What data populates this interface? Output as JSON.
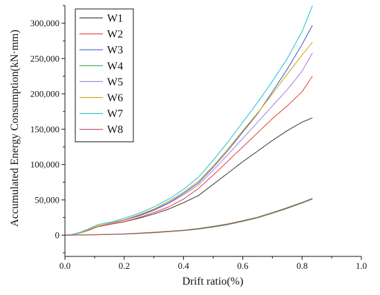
{
  "chart_data": {
    "type": "line",
    "xlabel": "Drift ratio(%)",
    "ylabel": "Accumulated Energy Consumption(kN·mm)",
    "xlim": [
      0,
      1.0
    ],
    "ylim": [
      -30000,
      325000
    ],
    "x_ticks": [
      0.0,
      0.2,
      0.4,
      0.6,
      0.8,
      1.0
    ],
    "x_tick_labels": [
      "0.0",
      "0.2",
      "0.4",
      "0.6",
      "0.8",
      "1.0"
    ],
    "y_ticks": [
      0,
      50000,
      100000,
      150000,
      200000,
      250000,
      300000
    ],
    "y_tick_labels": [
      "0",
      "50,000",
      "100,000",
      "150,000",
      "200,000",
      "250,000",
      "300,000"
    ],
    "grid": false,
    "legend_position": "top-left",
    "series": [
      {
        "name": "W1",
        "color": "#404040",
        "x": [
          0,
          0.02,
          0.05,
          0.08,
          0.11,
          0.16,
          0.2,
          0.25,
          0.3,
          0.35,
          0.4,
          0.45,
          0.5,
          0.55,
          0.6,
          0.65,
          0.7,
          0.75,
          0.8,
          0.835
        ],
        "y": [
          0,
          500,
          3000,
          7000,
          12000,
          16000,
          19000,
          24000,
          30000,
          37000,
          46000,
          56000,
          72000,
          88000,
          104000,
          119000,
          134000,
          148000,
          160000,
          166000
        ]
      },
      {
        "name": "W2",
        "color": "#e8473f",
        "x": [
          0,
          0.02,
          0.05,
          0.08,
          0.11,
          0.16,
          0.2,
          0.25,
          0.3,
          0.35,
          0.4,
          0.45,
          0.5,
          0.55,
          0.6,
          0.65,
          0.7,
          0.75,
          0.8,
          0.835
        ],
        "y": [
          0,
          500,
          3000,
          7000,
          12000,
          16000,
          19000,
          25000,
          32000,
          40000,
          51000,
          66000,
          85000,
          105000,
          125000,
          145000,
          165000,
          183000,
          203000,
          225000
        ]
      },
      {
        "name": "W3",
        "color": "#3f63c8",
        "x": [
          0,
          0.02,
          0.05,
          0.08,
          0.11,
          0.16,
          0.2,
          0.25,
          0.3,
          0.35,
          0.4,
          0.45,
          0.5,
          0.55,
          0.6,
          0.65,
          0.7,
          0.75,
          0.8,
          0.835
        ],
        "y": [
          0,
          500,
          3000,
          8000,
          13000,
          17000,
          21000,
          28000,
          36000,
          46000,
          59000,
          74000,
          96000,
          120000,
          146000,
          172000,
          203000,
          235000,
          270000,
          297000
        ]
      },
      {
        "name": "W4",
        "color": "#39a852",
        "x": [
          0,
          0.1,
          0.2,
          0.3,
          0.4,
          0.45,
          0.5,
          0.55,
          0.6,
          0.65,
          0.7,
          0.75,
          0.8,
          0.835
        ],
        "y": [
          0,
          500,
          1500,
          3500,
          6500,
          8500,
          11500,
          15000,
          19500,
          24500,
          31000,
          38000,
          45500,
          51000
        ]
      },
      {
        "name": "W5",
        "color": "#a987e0",
        "x": [
          0,
          0.02,
          0.05,
          0.08,
          0.11,
          0.16,
          0.2,
          0.25,
          0.3,
          0.35,
          0.4,
          0.45,
          0.5,
          0.55,
          0.6,
          0.65,
          0.7,
          0.75,
          0.8,
          0.835
        ],
        "y": [
          0,
          500,
          3000,
          8000,
          13000,
          17000,
          21000,
          27000,
          35000,
          45000,
          57000,
          71000,
          92000,
          114000,
          137000,
          160000,
          183000,
          206000,
          232000,
          258000
        ]
      },
      {
        "name": "W6",
        "color": "#d6a812",
        "x": [
          0,
          0.02,
          0.05,
          0.08,
          0.11,
          0.16,
          0.2,
          0.25,
          0.3,
          0.35,
          0.4,
          0.45,
          0.5,
          0.55,
          0.6,
          0.65,
          0.7,
          0.75,
          0.8,
          0.835
        ],
        "y": [
          0,
          500,
          3000,
          8000,
          13000,
          18000,
          22000,
          29000,
          37000,
          48000,
          61000,
          76000,
          98000,
          122000,
          148000,
          173000,
          200000,
          228000,
          255000,
          273000
        ]
      },
      {
        "name": "W7",
        "color": "#2bc6d8",
        "x": [
          0,
          0.02,
          0.05,
          0.08,
          0.11,
          0.16,
          0.2,
          0.25,
          0.3,
          0.35,
          0.4,
          0.45,
          0.5,
          0.55,
          0.6,
          0.65,
          0.7,
          0.75,
          0.8,
          0.835
        ],
        "y": [
          0,
          500,
          4000,
          9000,
          15000,
          19000,
          24000,
          31000,
          40000,
          51000,
          65000,
          82000,
          106000,
          132000,
          160000,
          188000,
          218000,
          250000,
          288000,
          325000
        ]
      },
      {
        "name": "W8",
        "color": "#b44a5a",
        "x": [
          0,
          0.1,
          0.2,
          0.3,
          0.4,
          0.45,
          0.5,
          0.55,
          0.6,
          0.65,
          0.7,
          0.75,
          0.8,
          0.835
        ],
        "y": [
          0,
          600,
          1800,
          4000,
          7000,
          9500,
          12500,
          16000,
          20500,
          25500,
          32000,
          39000,
          46500,
          52000
        ]
      }
    ]
  }
}
